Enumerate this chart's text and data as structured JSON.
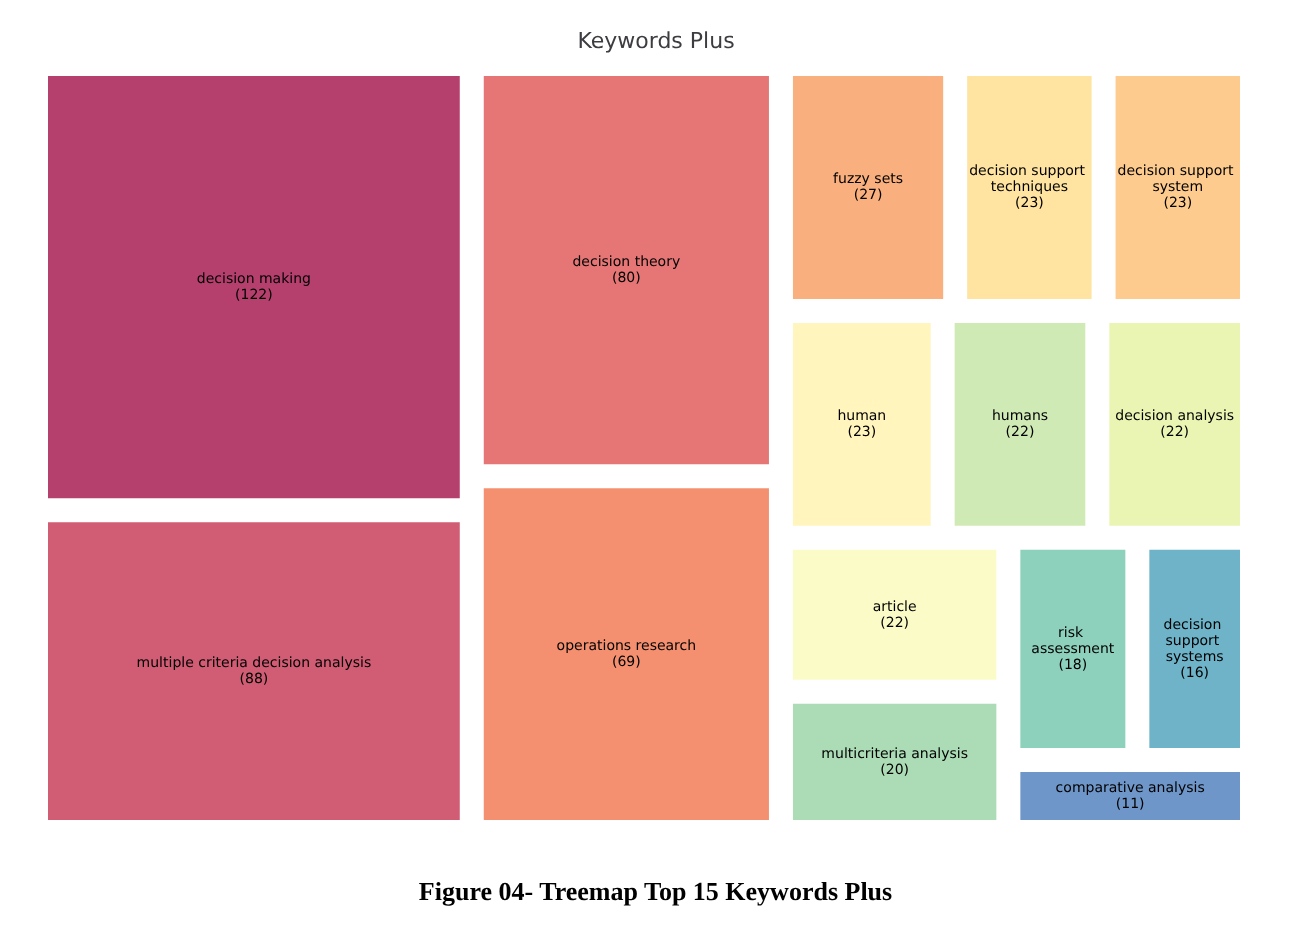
{
  "chart_data": {
    "type": "other",
    "title": "Keywords Plus",
    "annotations": [
      "Figure 04- Treemap Top 15 Keywords Plus"
    ],
    "value_labels": [
      "(122)",
      "(88)",
      "(80)",
      "(69)",
      "(27)",
      "(23)",
      "(23)",
      "(23)",
      "(22)",
      "(22)",
      "(22)",
      "(20)",
      "(18)",
      "(16)",
      "(11)"
    ],
    "categories": [
      "decision making",
      "multiple criteria decision analysis",
      "decision theory",
      "operations research",
      "fuzzy sets",
      "decision support techniques",
      "decision support system",
      "human",
      "humans",
      "decision analysis",
      "article",
      "multicriteria analysis",
      "risk assessment",
      "decision support systems",
      "comparative analysis"
    ],
    "values": [
      122,
      88,
      80,
      69,
      27,
      23,
      23,
      23,
      22,
      22,
      22,
      20,
      18,
      16,
      11
    ],
    "colors": [
      "#b5406e",
      "#d05d74",
      "#e67676",
      "#f4906f",
      "#f9b07e",
      "#fee3a1",
      "#fdcb8e",
      "#fff5bd",
      "#d0eab5",
      "#eaf5b4",
      "#fbfbc8",
      "#abdcb5",
      "#8dd0bb",
      "#6eb3c8",
      "#6f96c8"
    ]
  }
}
